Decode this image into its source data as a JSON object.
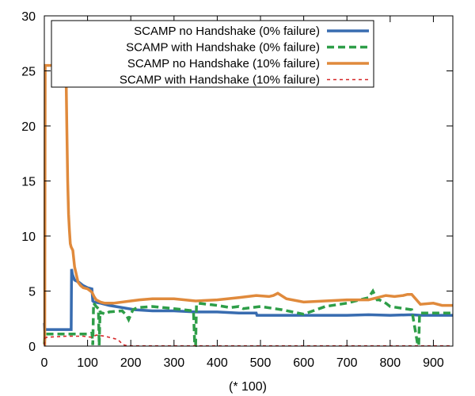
{
  "chart_data": {
    "type": "line",
    "title": "",
    "xlabel": "(* 100)",
    "ylabel": "",
    "xlim": [
      0,
      945
    ],
    "ylim": [
      0,
      30
    ],
    "xticks": [
      0,
      100,
      200,
      300,
      400,
      500,
      600,
      700,
      800,
      900
    ],
    "yticks": [
      0,
      5,
      10,
      15,
      20,
      25,
      30
    ],
    "xtick_labels": [
      "0",
      "100",
      "200",
      "300",
      "400",
      "500",
      "600",
      "700",
      "800",
      "900"
    ],
    "ytick_labels": [
      "0",
      "5",
      "10",
      "15",
      "20",
      "25",
      "30"
    ],
    "grid": false,
    "legend_position": "top-left",
    "series": [
      {
        "name": "SCAMP no Handshake (0% failure)",
        "color": "#386cb0",
        "dash": "solid",
        "x": [
          0,
          1,
          3,
          60,
          62,
          63,
          65,
          70,
          80,
          90,
          100,
          110,
          112,
          115,
          130,
          150,
          180,
          210,
          250,
          300,
          350,
          400,
          450,
          490,
          492,
          550,
          600,
          650,
          700,
          750,
          800,
          850,
          870,
          900,
          945
        ],
        "y": [
          2.1,
          1.5,
          1.5,
          1.5,
          1.5,
          7.0,
          6.5,
          6.0,
          5.8,
          5.5,
          5.3,
          5.2,
          4.1,
          4.0,
          3.9,
          3.7,
          3.5,
          3.3,
          3.2,
          3.2,
          3.1,
          3.1,
          3.0,
          3.0,
          2.8,
          2.8,
          2.8,
          2.8,
          2.8,
          2.85,
          2.8,
          2.85,
          2.8,
          2.8,
          2.8
        ]
      },
      {
        "name": "SCAMP with Handshake (0% failure)",
        "color": "#2e9e48",
        "dash": "dashed",
        "x": [
          0,
          2,
          5,
          60,
          100,
          110,
          112,
          114,
          120,
          125,
          127,
          129,
          131,
          135,
          140,
          150,
          180,
          190,
          195,
          205,
          215,
          250,
          300,
          345,
          348,
          350,
          352,
          355,
          400,
          430,
          450,
          460,
          500,
          550,
          600,
          650,
          700,
          750,
          760,
          770,
          775,
          790,
          800,
          850,
          864,
          866,
          868,
          870,
          900,
          945
        ],
        "y": [
          0.2,
          1.1,
          1.1,
          1.1,
          1.1,
          1.2,
          0.1,
          3.9,
          3.6,
          3.4,
          0.05,
          3.2,
          3.0,
          3.0,
          2.9,
          3.1,
          3.2,
          2.8,
          2.4,
          3.3,
          3.5,
          3.6,
          3.4,
          3.2,
          0.05,
          0.05,
          3.8,
          3.9,
          3.7,
          3.5,
          3.6,
          3.4,
          3.6,
          3.3,
          2.9,
          3.6,
          3.9,
          4.4,
          5.0,
          4.2,
          4.2,
          3.9,
          3.6,
          3.3,
          0.05,
          0.05,
          3.0,
          3.0,
          3.0,
          3.0
        ]
      },
      {
        "name": "SCAMP no Handshake (10% failure)",
        "color": "#e08a3c",
        "dash": "solid",
        "x": [
          0,
          1,
          2,
          4,
          40,
          42,
          44,
          50,
          52,
          54,
          56,
          58,
          60,
          62,
          66,
          70,
          74,
          78,
          84,
          90,
          100,
          110,
          115,
          120,
          130,
          140,
          160,
          200,
          220,
          250,
          300,
          350,
          400,
          450,
          490,
          520,
          530,
          540,
          560,
          600,
          650,
          700,
          750,
          790,
          810,
          830,
          840,
          850,
          870,
          900,
          920,
          945
        ],
        "y": [
          0.1,
          0.1,
          25.5,
          25.5,
          25.5,
          25.5,
          25.5,
          25.5,
          20.0,
          15.0,
          12.0,
          10.5,
          9.3,
          9.0,
          8.7,
          7.2,
          6.5,
          5.8,
          5.5,
          5.3,
          5.2,
          4.9,
          4.5,
          4.2,
          4.0,
          3.9,
          3.9,
          4.1,
          4.2,
          4.3,
          4.3,
          4.1,
          4.2,
          4.4,
          4.6,
          4.5,
          4.6,
          4.8,
          4.3,
          4.0,
          4.1,
          4.2,
          4.2,
          4.6,
          4.5,
          4.6,
          4.7,
          4.7,
          3.8,
          3.9,
          3.7,
          3.7
        ]
      },
      {
        "name": "SCAMP with Handshake (10% failure)",
        "color": "#d62728",
        "dash": "dotted",
        "x": [
          0,
          2,
          4,
          50,
          90,
          110,
          120,
          140,
          150,
          160,
          170,
          175,
          180,
          185,
          190,
          200,
          945
        ],
        "y": [
          0.1,
          0.7,
          0.8,
          0.9,
          0.9,
          0.8,
          1.0,
          0.9,
          0.8,
          0.7,
          0.6,
          0.4,
          0.2,
          0.1,
          0.05,
          0.02,
          0.02
        ]
      }
    ]
  }
}
